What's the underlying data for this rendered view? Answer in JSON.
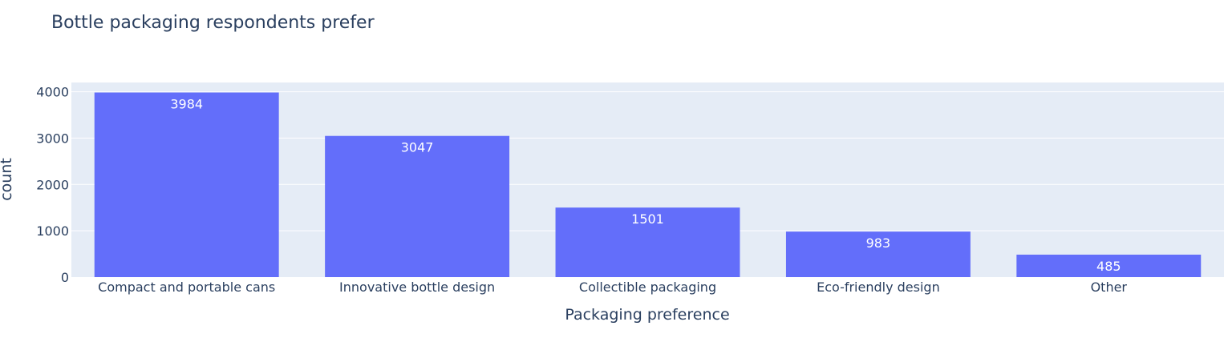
{
  "chart_data": {
    "type": "bar",
    "title": "Bottle packaging respondents prefer",
    "xlabel": "Packaging preference",
    "ylabel": "count",
    "categories": [
      "Compact and portable cans",
      "Innovative bottle design",
      "Collectible packaging",
      "Eco-friendly design",
      "Other"
    ],
    "values": [
      3984,
      3047,
      1501,
      983,
      485
    ],
    "ylim": [
      0,
      4200
    ],
    "yticks": [
      0,
      1000,
      2000,
      3000,
      4000
    ],
    "grid": true,
    "legend": "none",
    "colors": {
      "bar": "#636efa",
      "plot_bg": "#e5ecf6",
      "grid": "#ffffff",
      "text": "#2a3f5f"
    }
  }
}
